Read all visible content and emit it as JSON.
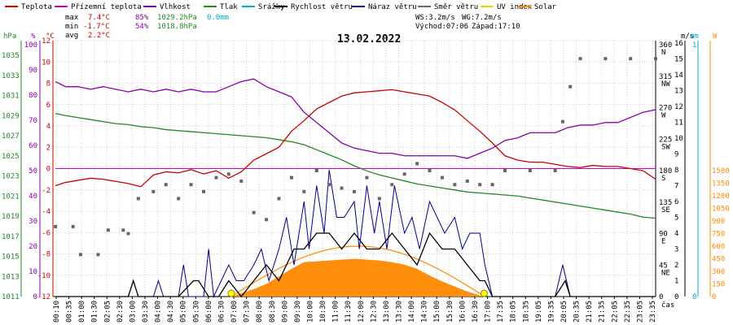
{
  "chart_data": {
    "type": "line",
    "title": "13.02.2022",
    "xlabel": "čas",
    "legend": [
      {
        "name": "Teplota",
        "color": "#cc0000"
      },
      {
        "name": "Přízemní teplota",
        "color": "#cc00cc"
      },
      {
        "name": "Vlhkost",
        "color": "#8800aa"
      },
      {
        "name": "Tlak",
        "color": "#228822"
      },
      {
        "name": "Srážky",
        "color": "#00aacc"
      },
      {
        "name": "Rychlost větru",
        "color": "#000000"
      },
      {
        "name": "Náraz větru",
        "color": "#000088"
      },
      {
        "name": "Směr větru",
        "color": "#666666"
      },
      {
        "name": "UV index",
        "color": "#dddd00"
      },
      {
        "name": "Solar",
        "color": "#ff8800"
      }
    ],
    "stats": {
      "max_row": {
        "label": "max",
        "temp": "7.4°C",
        "hum": "85%",
        "press": "1029.2hPa",
        "rain": "0.0mm"
      },
      "min_row": {
        "label": "min",
        "temp": "-1.7°C",
        "hum": "54%",
        "press": "1018.8hPa"
      },
      "avg_row": {
        "label": "avg",
        "temp": "2.2°C"
      },
      "ws": "WS:3.2m/s",
      "wg": "WG:7.2m/s",
      "sunrise": "Východ:07:06",
      "sunset": "Západ:17:10"
    },
    "axes": {
      "hpa": {
        "unit": "hPa",
        "ticks": [
          "1035",
          "1033",
          "1031",
          "1029",
          "1027",
          "1025",
          "1023",
          "1021",
          "1019",
          "1017",
          "1015",
          "1013",
          "1011"
        ],
        "color": "#228822"
      },
      "pct": {
        "unit": "%",
        "ticks": [
          "100",
          "90",
          "80",
          "70",
          "60",
          "50",
          "40",
          "30",
          "20",
          "10",
          "0"
        ],
        "color": "#8800aa"
      },
      "temp": {
        "unit": "°C",
        "ticks": [
          "12",
          "10",
          "8",
          "6",
          "4",
          "2",
          "0",
          "-2",
          "-4",
          "-6",
          "-8",
          "-10",
          "-12"
        ],
        "color": "#cc0000"
      },
      "dir": {
        "ticks": [
          "360\nN",
          "315\nNW",
          "270\nW",
          "225\nSW",
          "180\nS",
          "135\nSE",
          "90\nE",
          "45\nNE",
          "0"
        ]
      },
      "ms": {
        "unit": "m/s",
        "ticks": [
          "16",
          "15",
          "14",
          "13",
          "12",
          "11",
          "10",
          "9",
          "8",
          "7",
          "6",
          "5",
          "4",
          "3",
          "2",
          "1",
          "0"
        ]
      },
      "mm": {
        "unit": "mm",
        "ticks": [
          "1",
          "0"
        ],
        "color": "#00aacc"
      },
      "w": {
        "unit": "W",
        "ticks": [
          "1500",
          "1350",
          "1200",
          "1050",
          "900",
          "750",
          "600",
          "450",
          "300",
          "150",
          "0"
        ],
        "color": "#ff8800"
      },
      "x": {
        "ticks": [
          "00:10",
          "00:35",
          "01:00",
          "01:30",
          "02:05",
          "02:30",
          "03:00",
          "03:30",
          "04:00",
          "04:30",
          "05:00",
          "05:30",
          "06:00",
          "06:30",
          "07:00",
          "07:30",
          "08:00",
          "08:30",
          "09:00",
          "09:30",
          "10:00",
          "10:30",
          "11:00",
          "11:30",
          "12:00",
          "12:30",
          "13:00",
          "13:30",
          "14:00",
          "14:30",
          "15:00",
          "15:30",
          "16:00",
          "16:30",
          "17:00",
          "17:35",
          "18:05",
          "18:35",
          "19:05",
          "19:35",
          "20:05",
          "20:35",
          "21:05",
          "21:35",
          "22:05",
          "22:35",
          "23:05",
          "23:35"
        ]
      }
    },
    "series": [
      {
        "name": "Teplota",
        "unit": "°C",
        "color": "#cc0000",
        "x": [
          0.1,
          0.5,
          1,
          1.5,
          2,
          2.5,
          3,
          3.5,
          4,
          4.5,
          5,
          5.5,
          6,
          6.5,
          7,
          7.5,
          8,
          8.5,
          9,
          9.5,
          10,
          10.5,
          11,
          11.5,
          12,
          12.5,
          13,
          13.5,
          14,
          14.5,
          15,
          15.5,
          16,
          16.5,
          17,
          17.5,
          18,
          18.5,
          19,
          19.5,
          20,
          20.5,
          21,
          21.5,
          22,
          22.5,
          23,
          23.5,
          24
        ],
        "values": [
          -1.6,
          -1.3,
          -1.1,
          -0.9,
          -1.0,
          -1.2,
          -1.4,
          -1.7,
          -0.6,
          -0.3,
          -0.4,
          -0.1,
          -0.5,
          -0.2,
          -0.9,
          -0.3,
          0.8,
          1.4,
          2.0,
          3.5,
          4.5,
          5.6,
          6.2,
          6.8,
          7.1,
          7.2,
          7.3,
          7.4,
          7.2,
          7.0,
          6.8,
          6.2,
          5.5,
          4.5,
          3.5,
          2.4,
          1.2,
          0.8,
          0.6,
          0.6,
          0.4,
          0.2,
          0.1,
          0.3,
          0.2,
          0.2,
          0.0,
          -0.2,
          -1.0
        ]
      },
      {
        "name": "Vlhkost",
        "unit": "%",
        "color": "#8800aa",
        "x": [
          0.1,
          0.5,
          1,
          1.5,
          2,
          2.5,
          3,
          3.5,
          4,
          4.5,
          5,
          5.5,
          6,
          6.5,
          7,
          7.5,
          8,
          8.5,
          9,
          9.5,
          10,
          10.5,
          11,
          11.5,
          12,
          12.5,
          13,
          13.5,
          14,
          14.5,
          15,
          15.5,
          16,
          16.5,
          17,
          17.5,
          18,
          18.5,
          19,
          19.5,
          20,
          20.5,
          21,
          21.5,
          22,
          22.5,
          23,
          23.5,
          24
        ],
        "values": [
          84,
          82,
          82,
          81,
          82,
          81,
          80,
          81,
          80,
          81,
          80,
          81,
          80,
          80,
          82,
          84,
          85,
          82,
          80,
          78,
          72,
          68,
          64,
          60,
          58,
          57,
          56,
          56,
          55,
          55,
          55,
          55,
          55,
          54,
          56,
          58,
          61,
          62,
          64,
          64,
          64,
          66,
          67,
          67,
          68,
          68,
          70,
          72,
          73
        ]
      },
      {
        "name": "Tlak",
        "unit": "hPa",
        "color": "#228822",
        "x": [
          0.1,
          0.5,
          1,
          1.5,
          2,
          2.5,
          3,
          3.5,
          4,
          4.5,
          5,
          5.5,
          6,
          6.5,
          7,
          7.5,
          8,
          8.5,
          9,
          9.5,
          10,
          10.5,
          11,
          11.5,
          12,
          12.5,
          13,
          13.5,
          14,
          14.5,
          15,
          15.5,
          16,
          16.5,
          17,
          17.5,
          18,
          18.5,
          19,
          19.5,
          20,
          20.5,
          21,
          21.5,
          22,
          22.5,
          23,
          23.5,
          24
        ],
        "values": [
          1029.2,
          1029.0,
          1028.8,
          1028.6,
          1028.4,
          1028.2,
          1028.1,
          1027.9,
          1027.8,
          1027.6,
          1027.5,
          1027.4,
          1027.3,
          1027.2,
          1027.1,
          1027.0,
          1026.9,
          1026.8,
          1026.6,
          1026.4,
          1026.1,
          1025.6,
          1025.1,
          1024.6,
          1024.0,
          1023.5,
          1023.1,
          1022.8,
          1022.5,
          1022.2,
          1022.0,
          1021.8,
          1021.6,
          1021.4,
          1021.3,
          1021.2,
          1021.1,
          1021.0,
          1020.8,
          1020.6,
          1020.4,
          1020.2,
          1020.0,
          1019.8,
          1019.6,
          1019.4,
          1019.2,
          1018.9,
          1018.8
        ]
      },
      {
        "name": "Přízemní teplota",
        "unit": "°C",
        "color": "#cc00cc",
        "x": [
          0.1,
          24
        ],
        "values": [
          0,
          0
        ]
      },
      {
        "name": "Solar",
        "unit": "W/m2",
        "color": "#ff8800",
        "x": [
          7.1,
          7.5,
          8,
          8.5,
          9,
          9.5,
          10,
          10.5,
          11,
          11.5,
          12,
          12.5,
          13,
          13.5,
          14,
          14.5,
          15,
          15.5,
          16,
          16.5,
          17,
          17.2
        ],
        "values": [
          0,
          40,
          90,
          150,
          240,
          330,
          410,
          420,
          430,
          440,
          450,
          440,
          430,
          410,
          380,
          330,
          250,
          180,
          120,
          60,
          15,
          0
        ]
      },
      {
        "name": "Rychlost větru",
        "unit": "m/s",
        "color": "#000000",
        "x": [
          0.1,
          3,
          3.2,
          3.4,
          5,
          5.6,
          5.8,
          6.2,
          6.6,
          7,
          7.5,
          8,
          8.5,
          9,
          9.3,
          9.6,
          10,
          10.5,
          11,
          11.5,
          12,
          12.5,
          13,
          13.5,
          14,
          14.5,
          15,
          15.5,
          16,
          16.5,
          17,
          17.2,
          17.5,
          20,
          20.4,
          20.6,
          24
        ],
        "values": [
          0,
          0,
          1,
          0,
          0,
          1,
          1,
          0,
          0,
          1,
          0,
          1,
          2,
          1,
          2,
          3,
          3,
          4,
          4,
          3,
          4,
          3,
          3,
          4,
          3,
          2,
          4,
          3,
          3,
          2,
          1,
          1,
          0,
          0,
          1,
          0,
          0
        ]
      },
      {
        "name": "Náraz větru",
        "unit": "m/s",
        "color": "#000088",
        "x": [
          0.1,
          3,
          3.2,
          3.4,
          4,
          4.2,
          4.4,
          5,
          5.2,
          5.4,
          6,
          6.2,
          6.4,
          7,
          7.3,
          7.6,
          8,
          8.3,
          8.6,
          9,
          9.3,
          9.6,
          10,
          10.2,
          10.5,
          10.8,
          11,
          11.3,
          11.6,
          12,
          12.2,
          12.5,
          12.8,
          13,
          13.3,
          13.6,
          14,
          14.3,
          14.6,
          15,
          15.3,
          15.6,
          16,
          16.3,
          16.6,
          17,
          17.2,
          17.5,
          20,
          20.3,
          20.6,
          24
        ],
        "values": [
          0,
          0,
          1,
          0,
          0,
          1,
          0,
          0,
          2,
          0,
          0,
          3,
          0,
          2,
          1,
          1,
          2,
          3,
          1,
          3,
          5,
          2,
          6,
          3,
          7,
          4,
          8,
          5,
          5,
          6,
          3,
          7,
          4,
          6,
          3,
          7,
          4,
          5,
          3,
          6,
          5,
          4,
          5,
          3,
          4,
          4,
          2,
          0,
          0,
          2,
          0,
          0
        ]
      },
      {
        "name": "Směr větru",
        "unit": "°",
        "color": "#666666",
        "x": [
          0.1,
          0.8,
          1.1,
          1.8,
          2.2,
          2.8,
          3.0,
          3.4,
          4.0,
          4.5,
          5.0,
          5.5,
          6.0,
          6.5,
          7.0,
          7.5,
          8.0,
          8.5,
          9.0,
          9.5,
          10.0,
          10.5,
          11.0,
          11.5,
          12.0,
          12.5,
          13.0,
          13.5,
          14.0,
          14.5,
          15.0,
          15.5,
          16.0,
          16.5,
          17.0,
          17.5,
          18.0,
          19.0,
          20.0,
          20.3,
          20.6,
          21.0,
          22.0,
          23.0,
          24.0
        ],
        "values": [
          100,
          100,
          60,
          60,
          95,
          95,
          90,
          140,
          150,
          160,
          140,
          160,
          150,
          170,
          175,
          165,
          120,
          110,
          140,
          170,
          150,
          180,
          160,
          155,
          150,
          170,
          140,
          160,
          175,
          190,
          180,
          170,
          160,
          165,
          160,
          160,
          180,
          180,
          180,
          250,
          300,
          340,
          340,
          340,
          340
        ]
      }
    ]
  }
}
